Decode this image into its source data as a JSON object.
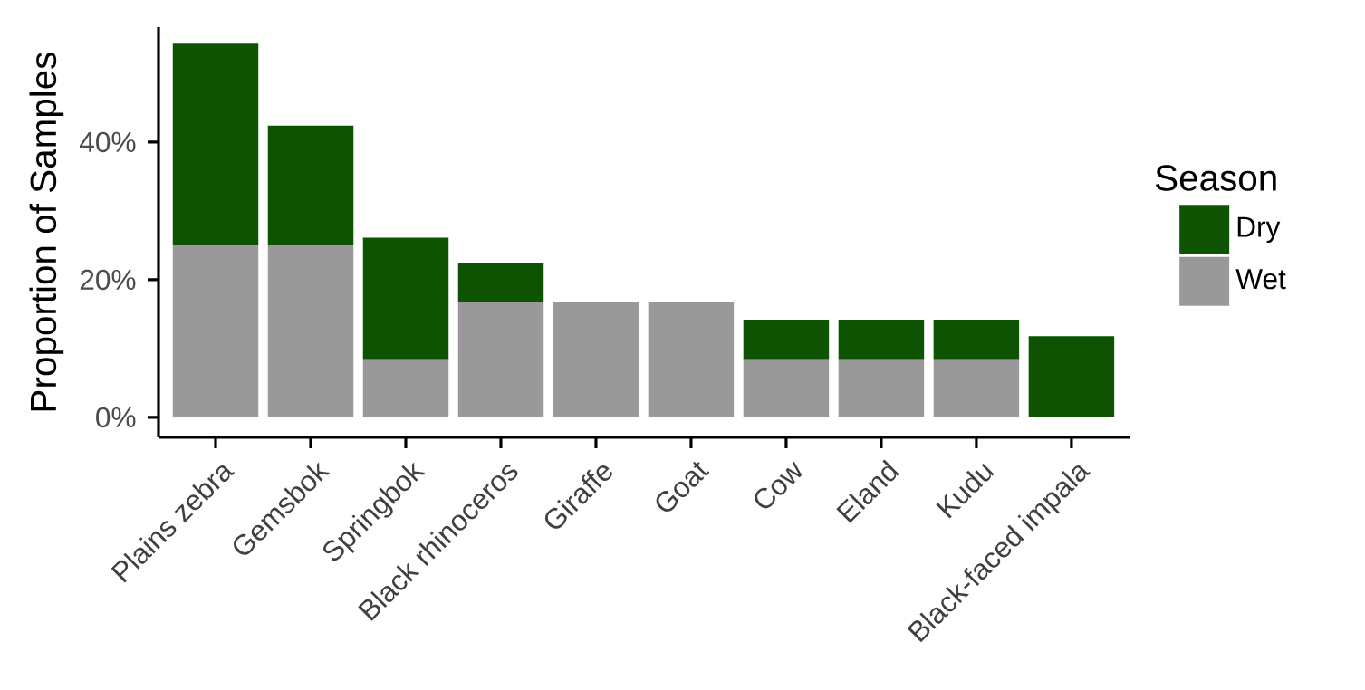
{
  "chart_data": {
    "type": "bar",
    "ylabel": "Proportion of Samples",
    "legend_title": "Season",
    "legend": "right",
    "stacked": true,
    "grid": false,
    "categories": [
      "Plains zebra",
      "Gemsbok",
      "Springbok",
      "Black rhinoceros",
      "Giraffe",
      "Goat",
      "Cow",
      "Eland",
      "Kudu",
      "Black-faced impala"
    ],
    "series": [
      {
        "name": "Wet",
        "color": "#999999",
        "values": [
          25,
          25,
          8.3,
          16.7,
          16.7,
          16.7,
          8.3,
          8.3,
          8.3,
          0
        ]
      },
      {
        "name": "Dry",
        "color": "#0d5302",
        "values": [
          29.3,
          17.4,
          17.8,
          5.8,
          0,
          0,
          5.9,
          5.9,
          5.9,
          11.8
        ]
      }
    ],
    "ylim": [
      -2.9,
      56.7
    ],
    "yticks": [
      {
        "value": 0,
        "label": "0%"
      },
      {
        "value": 20,
        "label": "20%"
      },
      {
        "value": 40,
        "label": "40%"
      }
    ]
  }
}
